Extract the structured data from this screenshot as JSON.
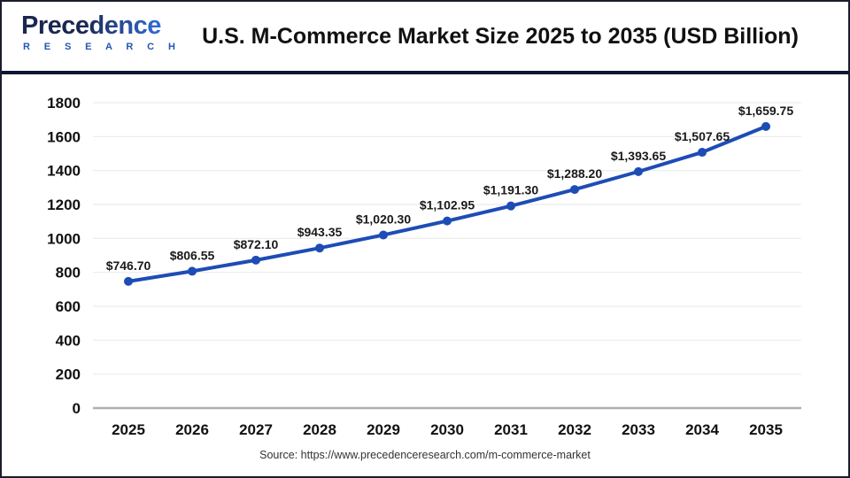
{
  "logo": {
    "word": "Precedence",
    "sub": "R E S E A R C H"
  },
  "header": {
    "title": "U.S. M-Commerce Market Size 2025 to 2035 (USD Billion)"
  },
  "footer": {
    "source": "Source: https://www.precedenceresearch.com/m-commerce-market"
  },
  "colors": {
    "line": "#1d4cb5",
    "marker": "#1d4cb5",
    "grid": "#ececec",
    "axis_baseline": "#b0b0b0",
    "text": "#111111",
    "label": "#1a1a1a",
    "divider_navy": "#0f1535",
    "frame_border": "#1a1d2e",
    "logo_dark": "#1b2750",
    "logo_light": "#2f6ad1",
    "logo_sub_blue": "#2356b4"
  },
  "chart_data": {
    "type": "line",
    "title": "U.S. M-Commerce Market Size 2025 to 2035 (USD Billion)",
    "unit": "USD Billion",
    "categories": [
      "2025",
      "2026",
      "2027",
      "2028",
      "2029",
      "2030",
      "2031",
      "2032",
      "2033",
      "2034",
      "2035"
    ],
    "values": [
      746.7,
      806.55,
      872.1,
      943.35,
      1020.3,
      1102.95,
      1191.3,
      1288.2,
      1393.65,
      1507.65,
      1659.75
    ],
    "point_labels": [
      "$746.70",
      "$806.55",
      "$872.10",
      "$943.35",
      "$1,020.30",
      "$1,102.95",
      "$1,191.30",
      "$1,288.20",
      "$1,393.65",
      "$1,507.65",
      "$1,659.75"
    ],
    "xlabel": "",
    "ylabel": "",
    "ylim": [
      0,
      1800
    ],
    "ytick_step": 200,
    "yticks": [
      0,
      200,
      400,
      600,
      800,
      1000,
      1200,
      1400,
      1600,
      1800
    ],
    "grid": true,
    "legend": "none"
  }
}
